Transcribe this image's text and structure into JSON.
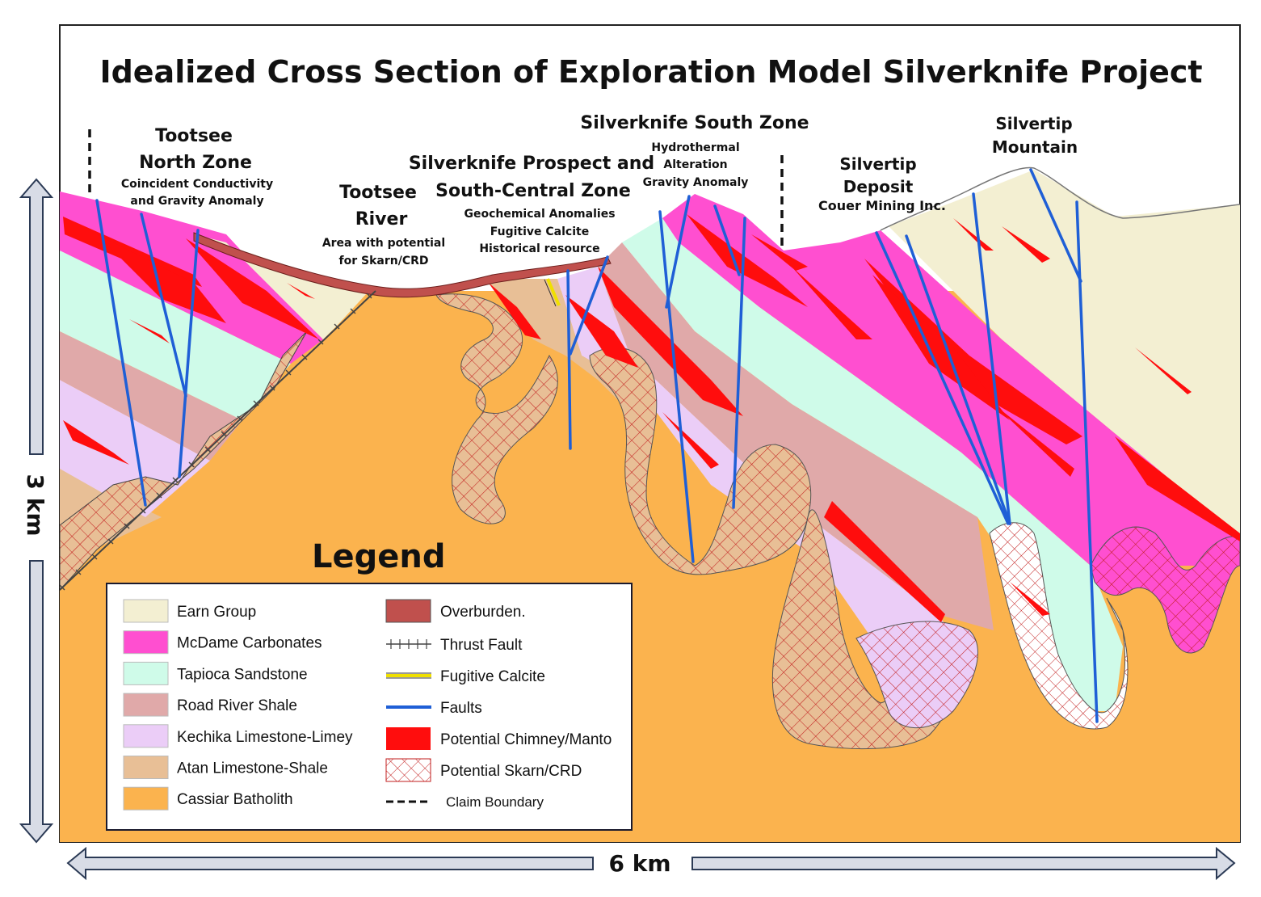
{
  "title": "Idealized Cross Section of  Exploration Model Silverknife Project",
  "zones": {
    "tootsee_north": {
      "name1": "Tootsee",
      "name2": "North Zone",
      "sub1": "Coincident Conductivity",
      "sub2": "and Gravity Anomaly"
    },
    "tootsee_river": {
      "name1": "Tootsee",
      "name2": "River",
      "sub1": "Area with potential",
      "sub2": "for Skarn/CRD"
    },
    "prospect": {
      "name1": "Silverknife Prospect and",
      "name2": "South-Central Zone",
      "sub1": "Geochemical Anomalies",
      "sub2": "Fugitive Calcite",
      "sub3": "Historical resource"
    },
    "south_zone": {
      "name": "Silverknife South Zone",
      "sub1": "Hydrothermal",
      "sub2": "Alteration",
      "sub3": "Gravity Anomaly"
    },
    "silvertip_deposit": {
      "name1": "Silvertip",
      "name2": "Deposit",
      "sub": "Couer Mining Inc."
    },
    "silvertip_mountain": {
      "name1": "Silvertip",
      "name2": "Mountain"
    }
  },
  "scale": {
    "vertical": "3 km",
    "horizontal": "6 km"
  },
  "legend": {
    "title": "Legend",
    "units": [
      {
        "label": "Earn Group",
        "color": "#f3efd2"
      },
      {
        "label": "McDame Carbonates",
        "color": "#ff4fd0"
      },
      {
        "label": "Tapioca Sandstone",
        "color": "#cffbe9"
      },
      {
        "label": "Road River Shale",
        "color": "#e0a9a9"
      },
      {
        "label": "Kechika Limestone-Limey",
        "color": "#ebcdf7"
      },
      {
        "label": "Atan Limestone-Shale",
        "color": "#e8bf96"
      },
      {
        "label": "Cassiar Batholith",
        "color": "#fbb34e"
      }
    ],
    "features": [
      {
        "label": "Overburden.",
        "icon": "overburden-swatch"
      },
      {
        "label": "Thrust Fault",
        "icon": "thrust-fault-symbol"
      },
      {
        "label": "Fugitive Calcite",
        "icon": "fugitive-calcite-line"
      },
      {
        "label": "Faults",
        "icon": "fault-line"
      },
      {
        "label": "Potential Chimney/Manto",
        "icon": "chimney-swatch"
      },
      {
        "label": "Potential Skarn/CRD",
        "icon": "skarn-swatch"
      },
      {
        "label": "Claim Boundary",
        "icon": "claim-boundary-line"
      }
    ]
  },
  "colors": {
    "earn": "#f3efd2",
    "mcdame": "#ff4fd0",
    "tapioca": "#cffbe9",
    "roadriver": "#e0a9a9",
    "kechika": "#ebcdf7",
    "atan": "#e8bf96",
    "batholith": "#fbb34e",
    "overburden": "#c0504d",
    "chimney": "#ff0d0d",
    "fault": "#1f5fd6",
    "calcite": "#f0e000",
    "arrow": "#d8dce6"
  }
}
